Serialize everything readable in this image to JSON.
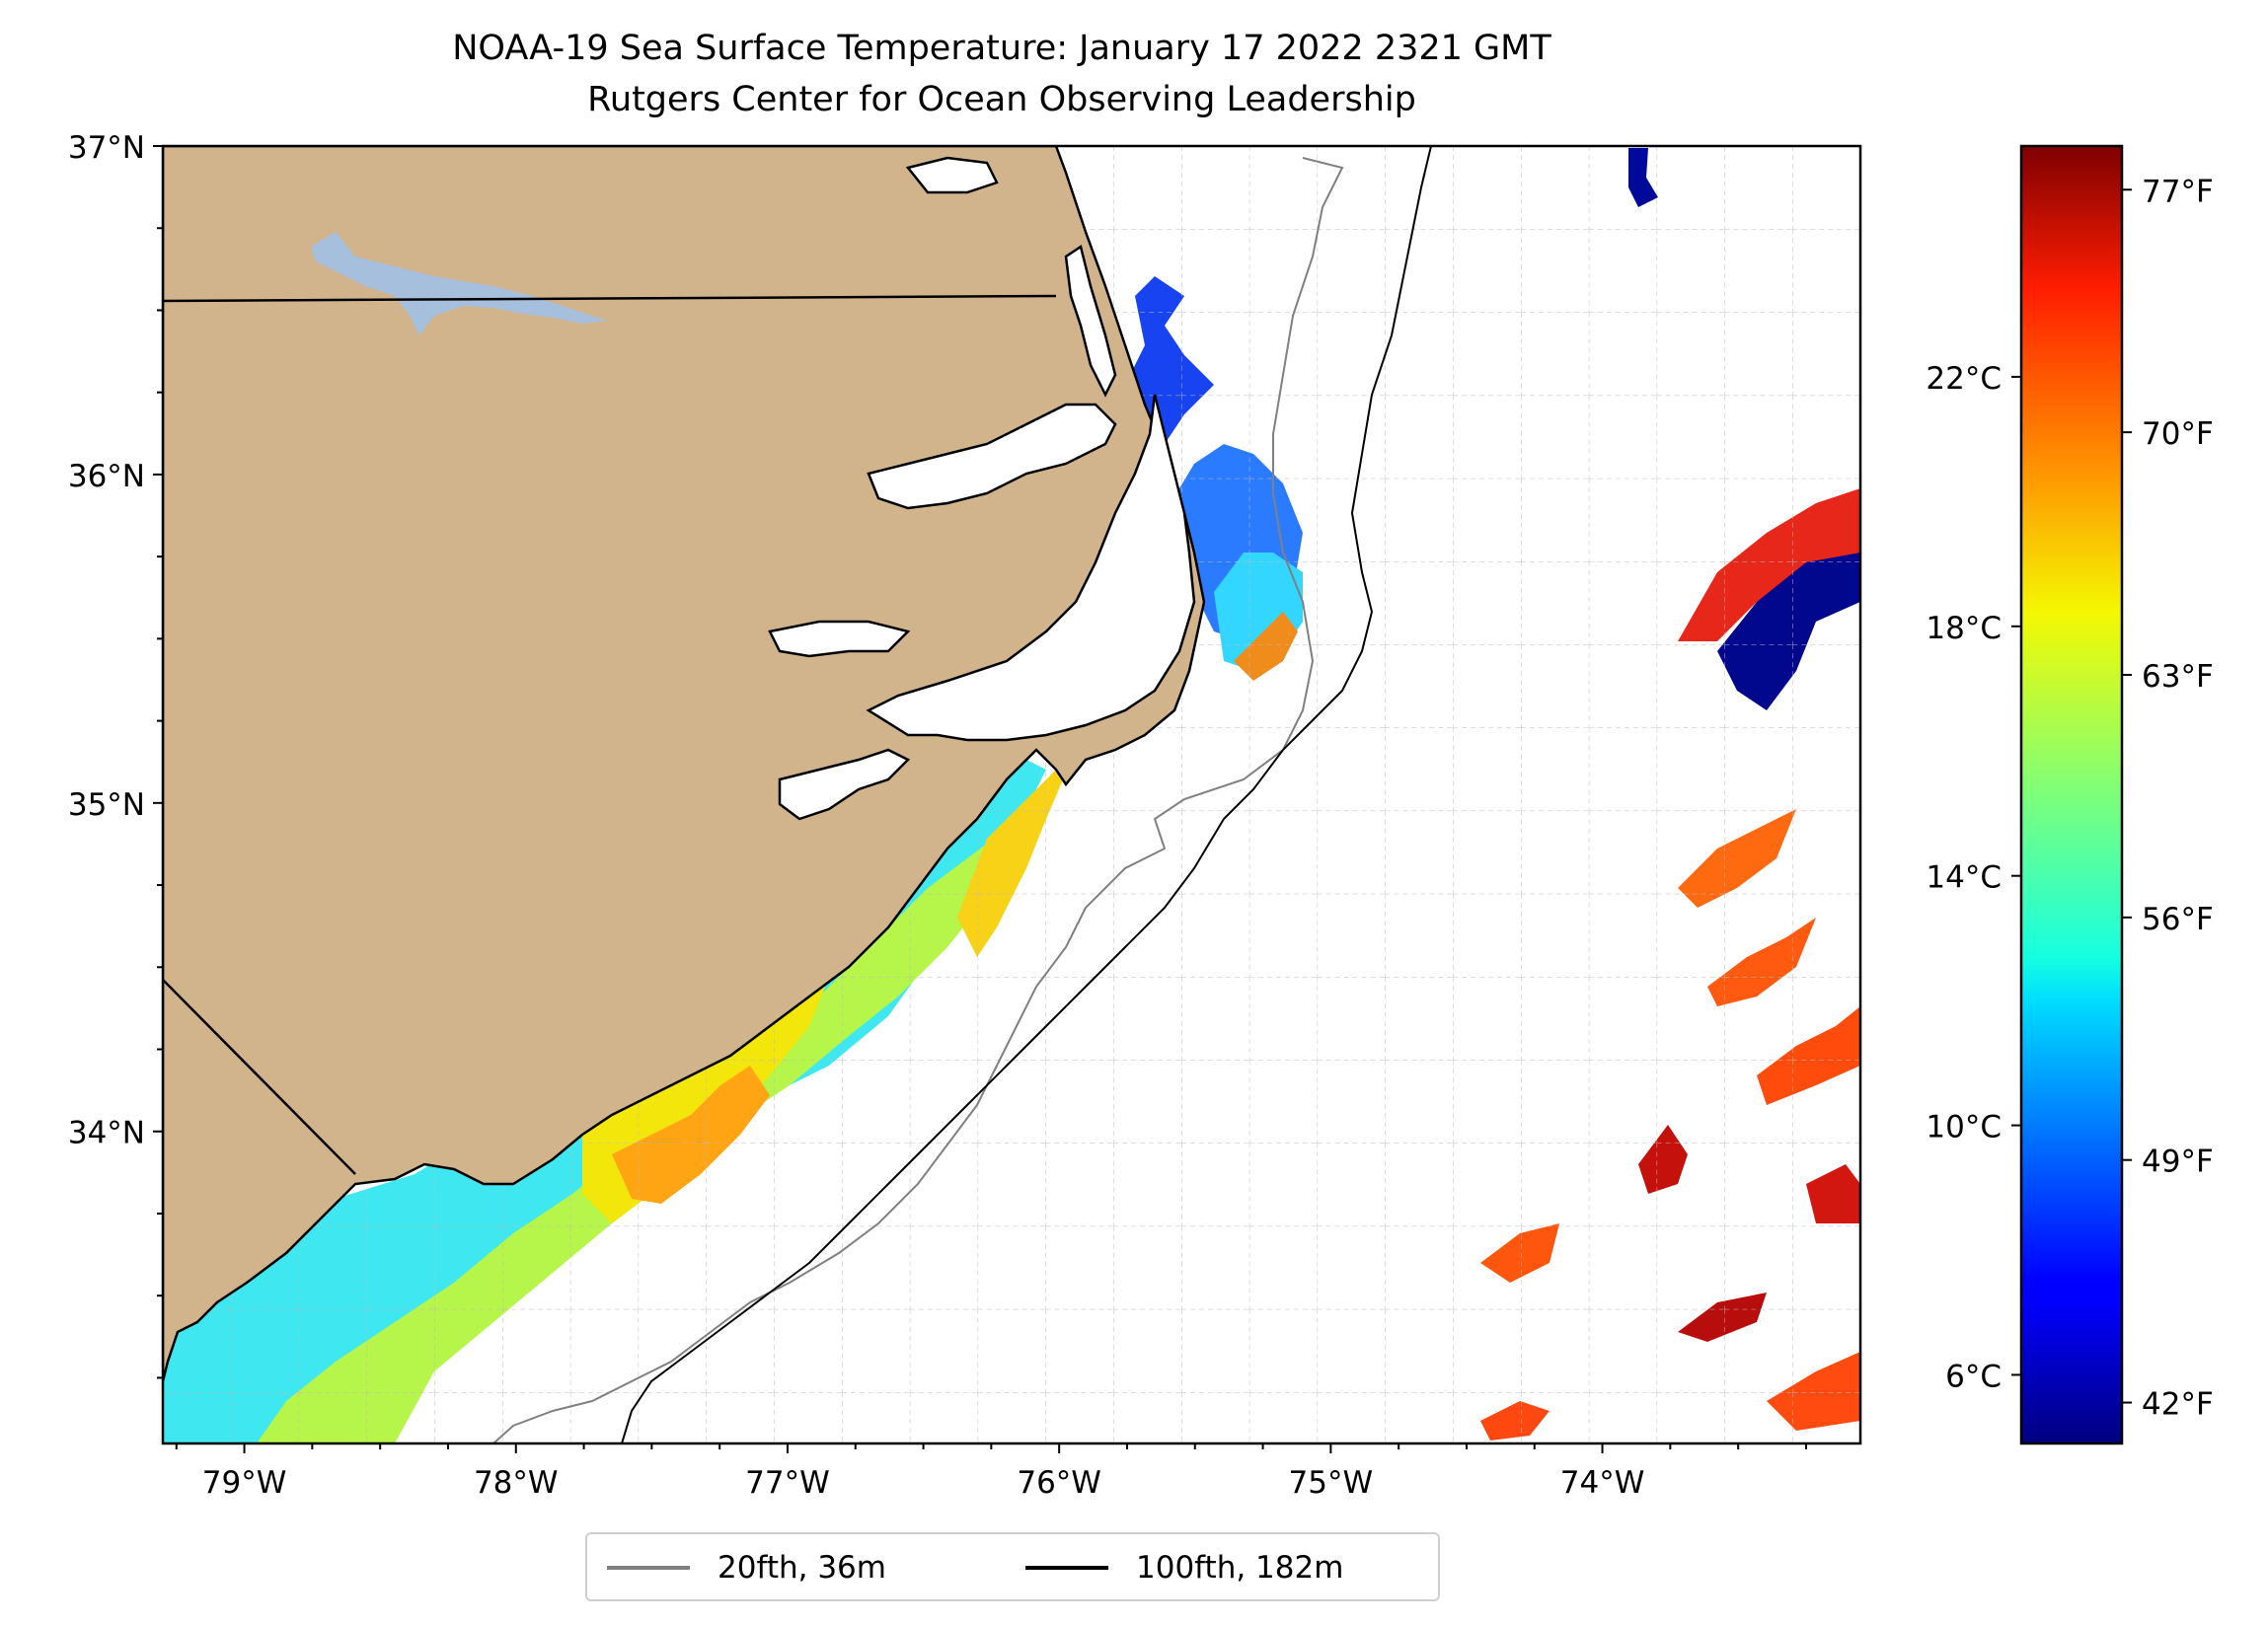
{
  "title_line1": "NOAA-19 Sea Surface Temperature: January 17 2022 2321 GMT",
  "title_line2": "Rutgers Center for Ocean Observing Leadership",
  "map": {
    "extent": {
      "lon_min": -79.3,
      "lon_max": -73.05,
      "lat_min": 33.05,
      "lat_max": 37.0
    },
    "lat_ticks": [
      {
        "value": 37,
        "label": "37°N"
      },
      {
        "value": 36,
        "label": "36°N"
      },
      {
        "value": 35,
        "label": "35°N"
      },
      {
        "value": 34,
        "label": "34°N"
      }
    ],
    "lon_ticks": [
      {
        "value": -79,
        "label": "79°W"
      },
      {
        "value": -78,
        "label": "78°W"
      },
      {
        "value": -77,
        "label": "77°W"
      },
      {
        "value": -76,
        "label": "76°W"
      },
      {
        "value": -75,
        "label": "75°W"
      },
      {
        "value": -74,
        "label": "74°W"
      }
    ],
    "grid": "on, dashed, every 0.25°",
    "land_color": "#d2b48c",
    "water_body_color": "#a5bfdd"
  },
  "legend": {
    "placement": "bottom-center, below map",
    "items": [
      {
        "label": "20fth, 36m",
        "color": "#808080"
      },
      {
        "label": "100fth, 182m",
        "color": "#000000"
      }
    ]
  },
  "colorbar": {
    "colormap": "jet",
    "range_c": [
      4.9,
      25.7
    ],
    "celsius_ticks": [
      {
        "value": 6,
        "label": "6°C"
      },
      {
        "value": 10,
        "label": "10°C"
      },
      {
        "value": 14,
        "label": "14°C"
      },
      {
        "value": 18,
        "label": "18°C"
      },
      {
        "value": 22,
        "label": "22°C"
      }
    ],
    "fahrenheit_ticks": [
      {
        "value": 42,
        "label": "42°F"
      },
      {
        "value": 49,
        "label": "49°F"
      },
      {
        "value": 56,
        "label": "56°F"
      },
      {
        "value": 63,
        "label": "63°F"
      },
      {
        "value": 70,
        "label": "70°F"
      },
      {
        "value": 77,
        "label": "77°F"
      }
    ]
  }
}
